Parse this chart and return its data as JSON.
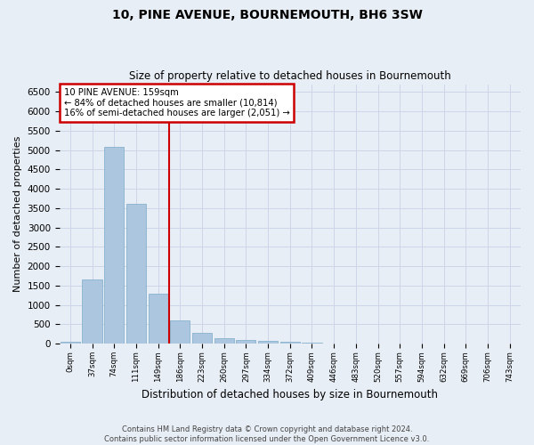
{
  "title": "10, PINE AVENUE, BOURNEMOUTH, BH6 3SW",
  "subtitle": "Size of property relative to detached houses in Bournemouth",
  "xlabel": "Distribution of detached houses by size in Bournemouth",
  "ylabel": "Number of detached properties",
  "footer_line1": "Contains HM Land Registry data © Crown copyright and database right 2024.",
  "footer_line2": "Contains public sector information licensed under the Open Government Licence v3.0.",
  "categories": [
    "0sqm",
    "37sqm",
    "74sqm",
    "111sqm",
    "149sqm",
    "186sqm",
    "223sqm",
    "260sqm",
    "297sqm",
    "334sqm",
    "372sqm",
    "409sqm",
    "446sqm",
    "483sqm",
    "520sqm",
    "557sqm",
    "594sqm",
    "632sqm",
    "669sqm",
    "706sqm",
    "743sqm"
  ],
  "bar_values": [
    60,
    1650,
    5080,
    3600,
    1300,
    600,
    285,
    150,
    105,
    75,
    40,
    28,
    12,
    4,
    0,
    0,
    0,
    0,
    0,
    0,
    0
  ],
  "bar_color": "#adc6e0",
  "bar_edge_color": "#7aaac8",
  "ylim": [
    0,
    6700
  ],
  "yticks": [
    0,
    500,
    1000,
    1500,
    2000,
    2500,
    3000,
    3500,
    4000,
    4500,
    5000,
    5500,
    6000,
    6500
  ],
  "property_label": "10 PINE AVENUE: 159sqm",
  "annotation_line1": "← 84% of detached houses are smaller (10,814)",
  "annotation_line2": "16% of semi-detached houses are larger (2,051) →",
  "vline_position": 4.5,
  "vline_color": "#cc0000",
  "annotation_box_color": "#ffffff",
  "annotation_box_edge": "#cc0000",
  "grid_color": "#cdd6e8",
  "background_color": "#e8eef5"
}
